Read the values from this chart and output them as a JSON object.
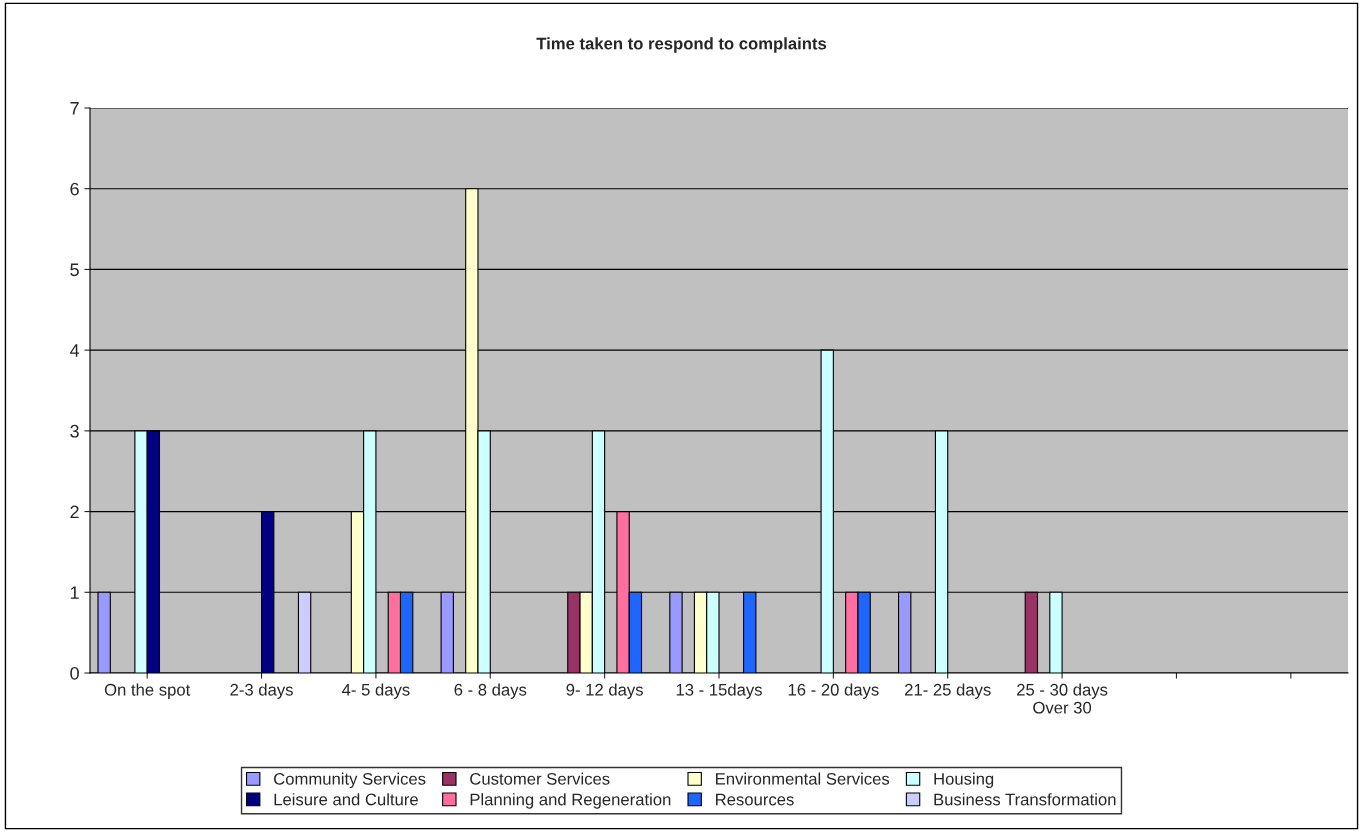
{
  "chart_data": {
    "type": "bar",
    "title": "Time taken to respond to complaints",
    "categories": [
      "On the spot",
      "2-3 days",
      "4- 5 days",
      "6 - 8 days",
      "9- 12 days",
      "13 - 15days",
      "16 - 20 days",
      "21- 25 days",
      "25 - 30 days\nOver 30",
      null,
      null
    ],
    "series": [
      {
        "name": "Community Services",
        "color": "#9999ff",
        "values": [
          1,
          null,
          null,
          1,
          null,
          1,
          null,
          1,
          null,
          null,
          null
        ]
      },
      {
        "name": "Customer Services",
        "color": "#993366",
        "values": [
          null,
          null,
          null,
          null,
          1,
          null,
          null,
          null,
          1,
          null,
          null
        ]
      },
      {
        "name": "Environmental Services",
        "color": "#ffffcc",
        "values": [
          null,
          null,
          2,
          6,
          1,
          1,
          null,
          null,
          null,
          null,
          null
        ]
      },
      {
        "name": "Housing",
        "color": "#ccffff",
        "values": [
          3,
          null,
          3,
          3,
          3,
          1,
          4,
          3,
          1,
          null,
          null
        ]
      },
      {
        "name": "Leisure and Culture",
        "color": "#000080",
        "values": [
          3,
          2,
          null,
          null,
          null,
          null,
          null,
          null,
          null,
          null,
          null
        ]
      },
      {
        "name": "Planning and Regeneration",
        "color": "#ff6f9f",
        "values": [
          null,
          null,
          1,
          null,
          2,
          null,
          1,
          null,
          null,
          null,
          null
        ]
      },
      {
        "name": "Resources",
        "color": "#1f66ff",
        "values": [
          null,
          null,
          1,
          null,
          1,
          1,
          1,
          null,
          null,
          null,
          null
        ]
      },
      {
        "name": "Business Transformation",
        "color": "#ccccff",
        "values": [
          null,
          1,
          null,
          null,
          null,
          null,
          null,
          null,
          null,
          null,
          null
        ]
      }
    ],
    "ylim": [
      0,
      7
    ],
    "yticks": [
      0,
      1,
      2,
      3,
      4,
      5,
      6,
      7
    ],
    "grid": "y",
    "legend": "bottom"
  }
}
